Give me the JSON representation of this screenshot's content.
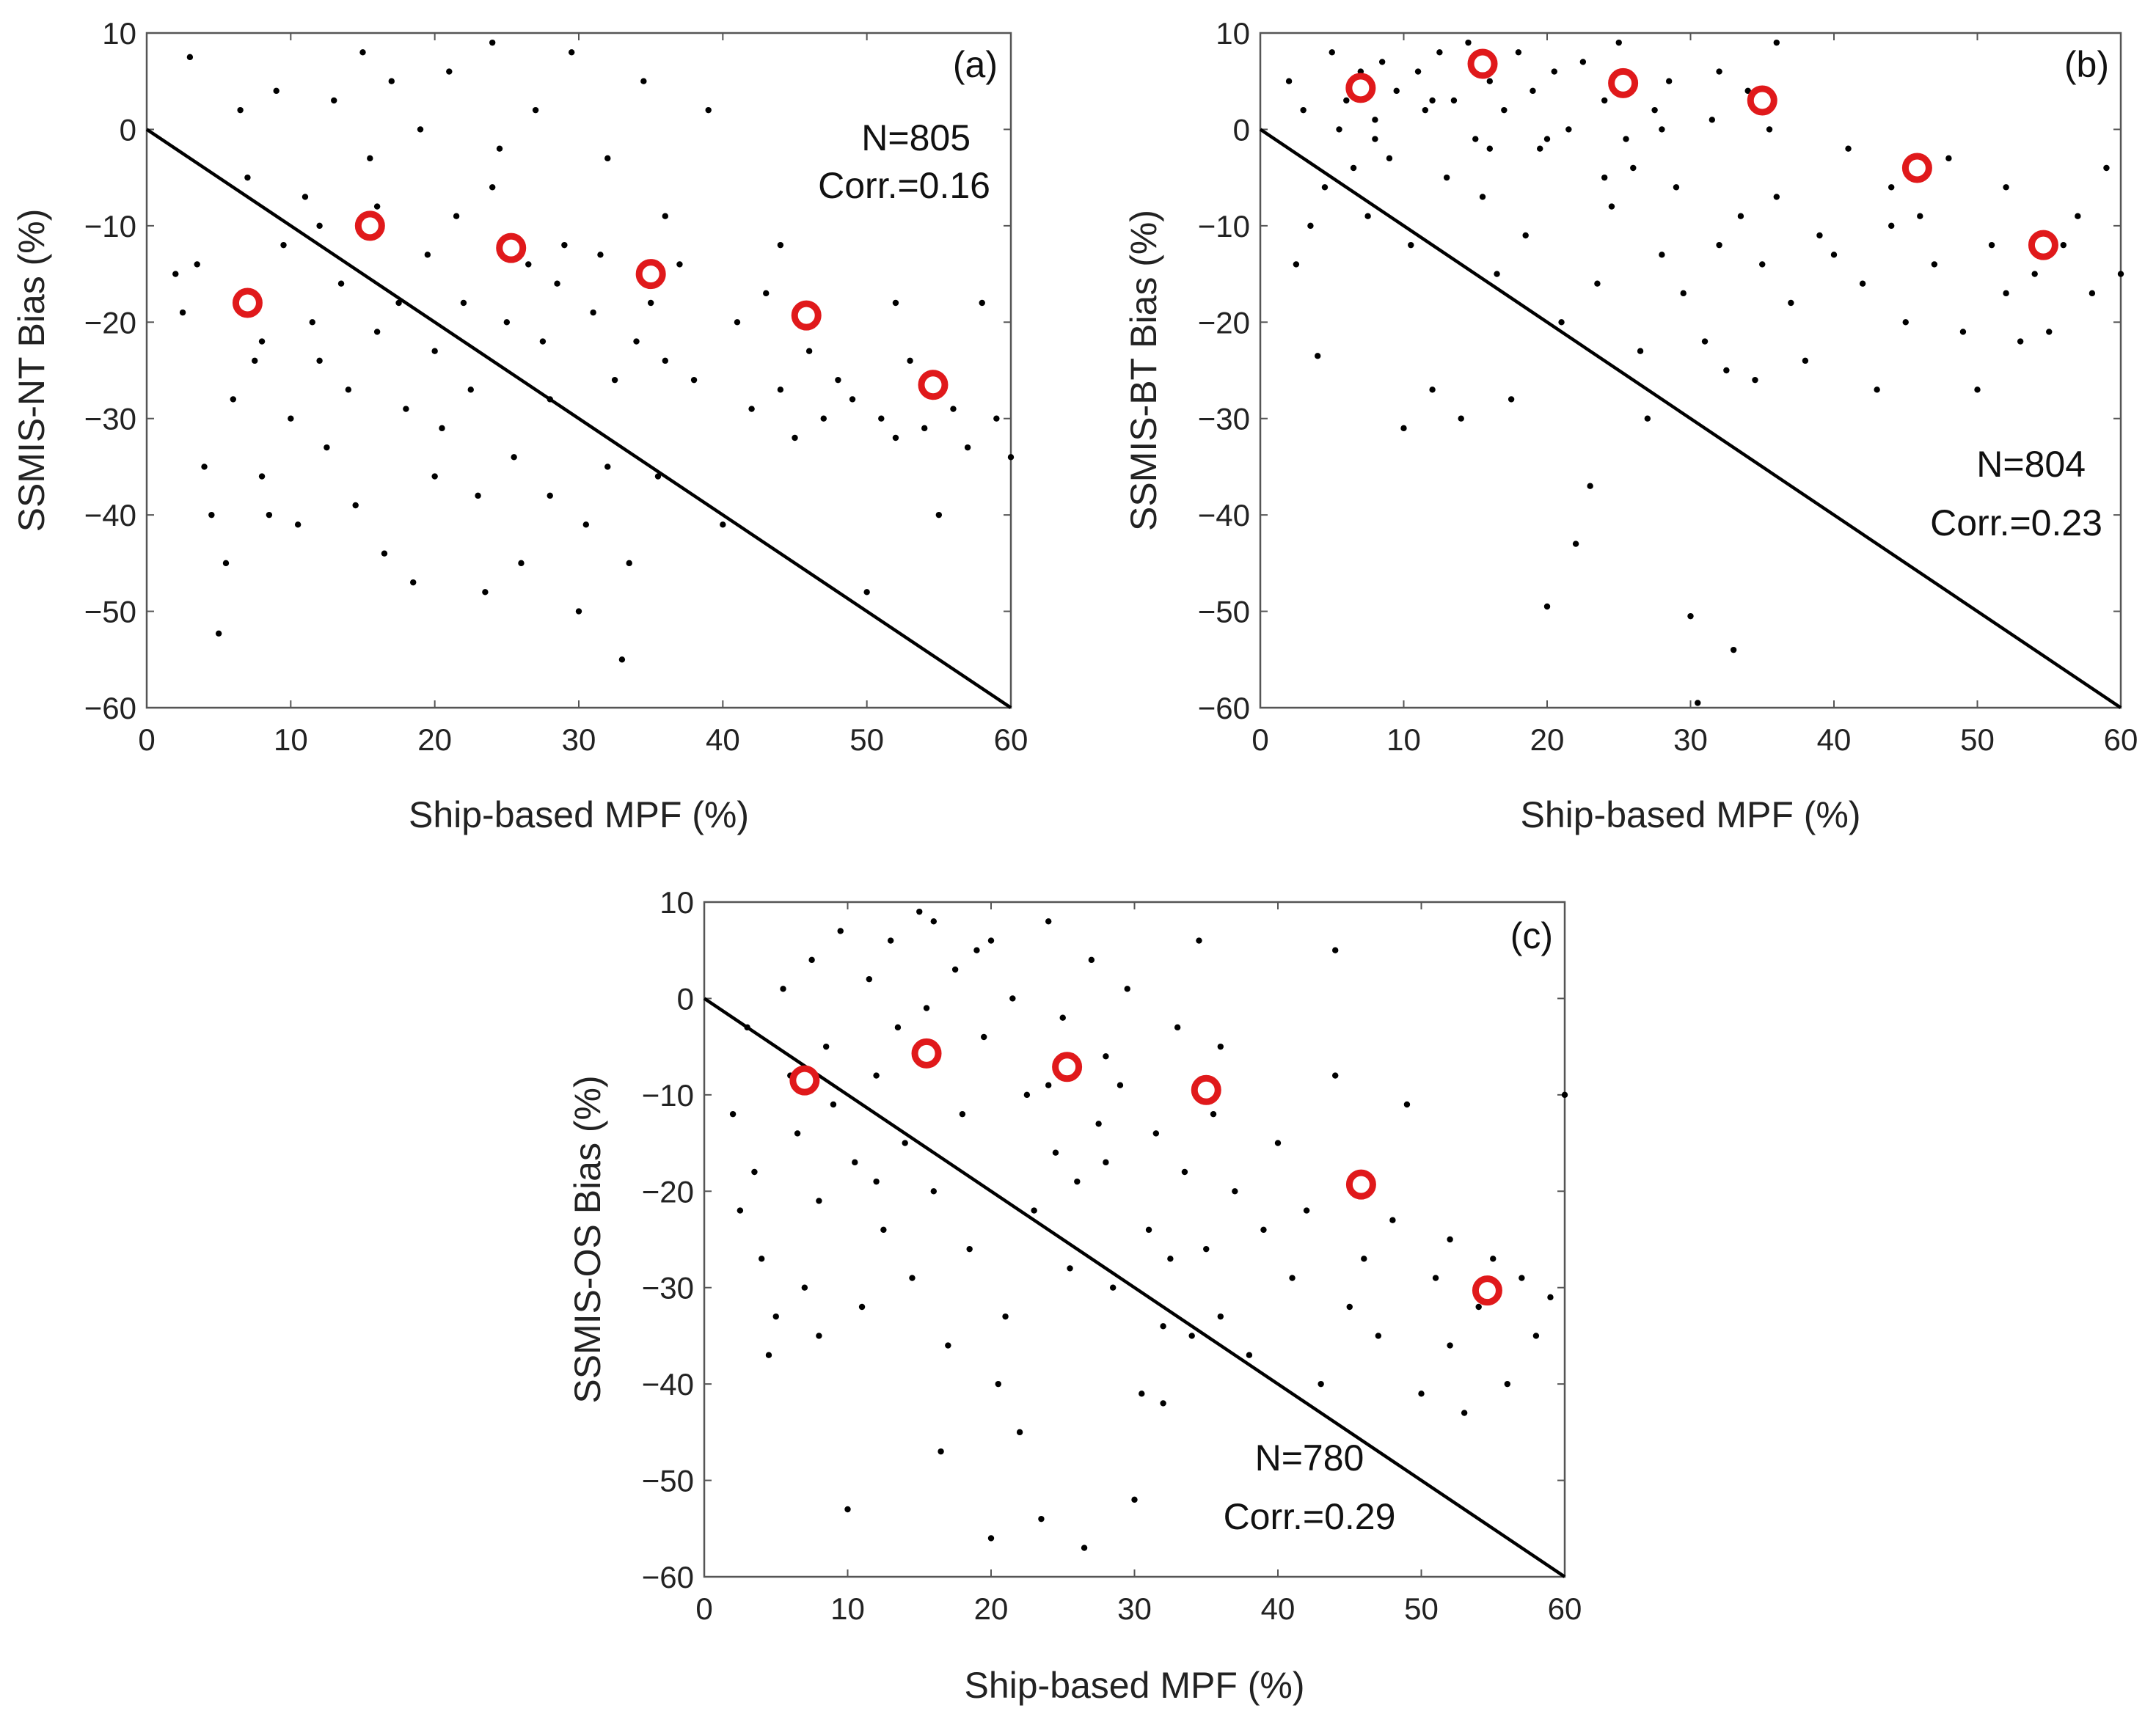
{
  "figure": {
    "panel_count": 3
  },
  "chart_data": [
    {
      "type": "scatter",
      "panel_label": "(a)",
      "xlabel": "Ship-based MPF (%)",
      "ylabel": "SSMIS-NT Bias (%)",
      "xlim": [
        0,
        60
      ],
      "ylim": [
        -60,
        10
      ],
      "xticks": [
        0,
        10,
        20,
        30,
        40,
        50,
        60
      ],
      "yticks": [
        10,
        0,
        -10,
        -20,
        -30,
        -40,
        -50,
        -60
      ],
      "annotation_n": "N=805",
      "annotation_corr": "Corr.=0.16",
      "reference_line": {
        "x": [
          0,
          60
        ],
        "y": [
          0,
          -60
        ]
      },
      "binned_means": [
        {
          "x": 7,
          "y": -18
        },
        {
          "x": 15.5,
          "y": -10
        },
        {
          "x": 25.3,
          "y": -12.3
        },
        {
          "x": 35,
          "y": -15
        },
        {
          "x": 45.8,
          "y": -19.3
        },
        {
          "x": 54.6,
          "y": -26.5
        }
      ],
      "scatter_points_approx": [
        [
          2,
          -15
        ],
        [
          2.5,
          -19
        ],
        [
          3,
          7.5
        ],
        [
          3.5,
          -14
        ],
        [
          4,
          -35
        ],
        [
          4.5,
          -40
        ],
        [
          5,
          -52.3
        ],
        [
          5.5,
          -45
        ],
        [
          6,
          -28
        ],
        [
          6.5,
          2
        ],
        [
          7,
          -5
        ],
        [
          7.5,
          -24
        ],
        [
          8,
          -36
        ],
        [
          8.5,
          -40
        ],
        [
          9,
          4
        ],
        [
          9.5,
          -12
        ],
        [
          10,
          -30
        ],
        [
          10.5,
          -41
        ],
        [
          11,
          -7
        ],
        [
          11.5,
          -20
        ],
        [
          12,
          -24
        ],
        [
          12.5,
          -33
        ],
        [
          13,
          3
        ],
        [
          13.5,
          -16
        ],
        [
          14,
          -27
        ],
        [
          14.5,
          -39
        ],
        [
          15,
          8
        ],
        [
          15.5,
          -3
        ],
        [
          16,
          -21
        ],
        [
          16.5,
          -44
        ],
        [
          17,
          5
        ],
        [
          17.5,
          -18
        ],
        [
          18,
          -29
        ],
        [
          18.5,
          -47
        ],
        [
          19,
          0
        ],
        [
          19.5,
          -13
        ],
        [
          20,
          -23
        ],
        [
          20.5,
          -31
        ],
        [
          21,
          6
        ],
        [
          21.5,
          -9
        ],
        [
          22,
          -18
        ],
        [
          22.5,
          -27
        ],
        [
          23,
          -38
        ],
        [
          23.5,
          -48
        ],
        [
          24,
          9
        ],
        [
          24.5,
          -2
        ],
        [
          25,
          -20
        ],
        [
          25.5,
          -34
        ],
        [
          26,
          -45
        ],
        [
          26.5,
          -14
        ],
        [
          27,
          2
        ],
        [
          27.5,
          -22
        ],
        [
          28,
          -28
        ],
        [
          28.5,
          -16
        ],
        [
          29,
          -12
        ],
        [
          29.5,
          8
        ],
        [
          30,
          -50
        ],
        [
          30.5,
          -41
        ],
        [
          31,
          -19
        ],
        [
          31.5,
          -13
        ],
        [
          32,
          -35
        ],
        [
          32.5,
          -26
        ],
        [
          33,
          -55
        ],
        [
          33.5,
          -45
        ],
        [
          34,
          -22
        ],
        [
          34.5,
          5
        ],
        [
          35,
          -18
        ],
        [
          35.5,
          -36
        ],
        [
          36,
          -24
        ],
        [
          37,
          -14
        ],
        [
          38,
          -26
        ],
        [
          39,
          2
        ],
        [
          40,
          -41
        ],
        [
          41,
          -20
        ],
        [
          42,
          -29
        ],
        [
          43,
          -17
        ],
        [
          44,
          -27
        ],
        [
          45,
          -32
        ],
        [
          46,
          -23
        ],
        [
          47,
          -30
        ],
        [
          48,
          -26
        ],
        [
          49,
          -28
        ],
        [
          50,
          -48
        ],
        [
          51,
          -30
        ],
        [
          52,
          -18
        ],
        [
          53,
          -24
        ],
        [
          54,
          -31
        ],
        [
          55,
          -40
        ],
        [
          56,
          -29
        ],
        [
          57,
          -33
        ],
        [
          58,
          -18
        ],
        [
          59,
          -30
        ],
        [
          60,
          -34
        ],
        [
          8,
          -22
        ],
        [
          12,
          -10
        ],
        [
          16,
          -8
        ],
        [
          20,
          -36
        ],
        [
          24,
          -6
        ],
        [
          28,
          -38
        ],
        [
          32,
          -3
        ],
        [
          36,
          -9
        ],
        [
          44,
          -12
        ],
        [
          52,
          -32
        ]
      ]
    },
    {
      "type": "scatter",
      "panel_label": "(b)",
      "xlabel": "Ship-based MPF (%)",
      "ylabel": "SSMIS-BT Bias (%)",
      "xlim": [
        0,
        60
      ],
      "ylim": [
        -60,
        10
      ],
      "xticks": [
        0,
        10,
        20,
        30,
        40,
        50,
        60
      ],
      "yticks": [
        10,
        0,
        -10,
        -20,
        -30,
        -40,
        -50,
        -60
      ],
      "annotation_n": "N=804",
      "annotation_corr": "Corr.=0.23",
      "reference_line": {
        "x": [
          0,
          60
        ],
        "y": [
          0,
          -60
        ]
      },
      "binned_means": [
        {
          "x": 7,
          "y": 4.3
        },
        {
          "x": 15.5,
          "y": 6.8
        },
        {
          "x": 25.3,
          "y": 4.8
        },
        {
          "x": 35,
          "y": 3
        },
        {
          "x": 45.8,
          "y": -4
        },
        {
          "x": 54.6,
          "y": -12
        }
      ],
      "scatter_points_approx": [
        [
          2,
          5
        ],
        [
          2.5,
          -14
        ],
        [
          3,
          2
        ],
        [
          3.5,
          -10
        ],
        [
          4,
          -23.5
        ],
        [
          4.5,
          -6
        ],
        [
          5,
          8
        ],
        [
          5.5,
          0
        ],
        [
          6,
          3
        ],
        [
          6.5,
          -4
        ],
        [
          7,
          6
        ],
        [
          7.5,
          -9
        ],
        [
          8,
          1
        ],
        [
          8.5,
          7
        ],
        [
          9,
          -3
        ],
        [
          9.5,
          4
        ],
        [
          10,
          -31
        ],
        [
          10.5,
          -12
        ],
        [
          11,
          6
        ],
        [
          11.5,
          2
        ],
        [
          12,
          -27
        ],
        [
          12.5,
          8
        ],
        [
          13,
          -5
        ],
        [
          13.5,
          3
        ],
        [
          14,
          -30
        ],
        [
          14.5,
          9
        ],
        [
          15,
          -1
        ],
        [
          15.5,
          -7
        ],
        [
          16,
          5
        ],
        [
          16.5,
          -15
        ],
        [
          17,
          2
        ],
        [
          17.5,
          -28
        ],
        [
          18,
          8
        ],
        [
          18.5,
          -11
        ],
        [
          19,
          4
        ],
        [
          19.5,
          -2
        ],
        [
          20,
          -49.5
        ],
        [
          20.5,
          6
        ],
        [
          21,
          -20
        ],
        [
          21.5,
          0
        ],
        [
          22,
          -43
        ],
        [
          22.5,
          7
        ],
        [
          23,
          -37
        ],
        [
          23.5,
          -16
        ],
        [
          24,
          3
        ],
        [
          24.5,
          -8
        ],
        [
          25,
          9
        ],
        [
          25.5,
          -1
        ],
        [
          26,
          -4
        ],
        [
          26.5,
          -23
        ],
        [
          27,
          -30
        ],
        [
          27.5,
          2
        ],
        [
          28,
          -13
        ],
        [
          28.5,
          5
        ],
        [
          29,
          -6
        ],
        [
          29.5,
          -17
        ],
        [
          30,
          -50.5
        ],
        [
          30.5,
          -59.5
        ],
        [
          31,
          -22
        ],
        [
          31.5,
          1
        ],
        [
          32,
          -12
        ],
        [
          32.5,
          -25
        ],
        [
          33,
          -54
        ],
        [
          33.5,
          -9
        ],
        [
          34,
          4
        ],
        [
          34.5,
          -26
        ],
        [
          35,
          -14
        ],
        [
          35.5,
          0
        ],
        [
          36,
          -7
        ],
        [
          37,
          -18
        ],
        [
          38,
          -24
        ],
        [
          39,
          -11
        ],
        [
          40,
          -13
        ],
        [
          41,
          -2
        ],
        [
          42,
          -16
        ],
        [
          43,
          -27
        ],
        [
          44,
          -6
        ],
        [
          45,
          -20
        ],
        [
          46,
          -9
        ],
        [
          47,
          -14
        ],
        [
          48,
          -3
        ],
        [
          49,
          -21
        ],
        [
          50,
          -27
        ],
        [
          51,
          -12
        ],
        [
          52,
          -17
        ],
        [
          53,
          -22
        ],
        [
          54,
          -15
        ],
        [
          55,
          -21
        ],
        [
          56,
          -12
        ],
        [
          57,
          -9
        ],
        [
          58,
          -17
        ],
        [
          59,
          -4
        ],
        [
          60,
          -15
        ],
        [
          8,
          -1
        ],
        [
          12,
          3
        ],
        [
          16,
          -2
        ],
        [
          20,
          -1
        ],
        [
          24,
          -5
        ],
        [
          28,
          0
        ],
        [
          32,
          6
        ],
        [
          36,
          9
        ],
        [
          44,
          -10
        ],
        [
          52,
          -6
        ]
      ]
    },
    {
      "type": "scatter",
      "panel_label": "(c)",
      "xlabel": "Ship-based MPF (%)",
      "ylabel": "SSMIS-OS Bias (%)",
      "xlim": [
        0,
        60
      ],
      "ylim": [
        -60,
        10
      ],
      "xticks": [
        0,
        10,
        20,
        30,
        40,
        50,
        60
      ],
      "yticks": [
        10,
        0,
        -10,
        -20,
        -30,
        -40,
        -50,
        -60
      ],
      "annotation_n": "N=780",
      "annotation_corr": "Corr.=0.29",
      "reference_line": {
        "x": [
          0,
          60
        ],
        "y": [
          0,
          -60
        ]
      },
      "binned_means": [
        {
          "x": 7,
          "y": -8.5
        },
        {
          "x": 15.5,
          "y": -5.7
        },
        {
          "x": 25.3,
          "y": -7.1
        },
        {
          "x": 35,
          "y": -9.5
        },
        {
          "x": 45.8,
          "y": -19.3
        },
        {
          "x": 54.6,
          "y": -30.3
        }
      ],
      "scatter_points_approx": [
        [
          2,
          -12
        ],
        [
          2.5,
          -22
        ],
        [
          3,
          -3
        ],
        [
          3.5,
          -18
        ],
        [
          4,
          -27
        ],
        [
          4.5,
          -37
        ],
        [
          5,
          -33
        ],
        [
          5.5,
          1
        ],
        [
          6,
          -8
        ],
        [
          6.5,
          -14
        ],
        [
          7,
          -30
        ],
        [
          7.5,
          4
        ],
        [
          8,
          -35
        ],
        [
          8.5,
          -5
        ],
        [
          9,
          -11
        ],
        [
          9.5,
          7
        ],
        [
          10,
          -53
        ],
        [
          10.5,
          -17
        ],
        [
          11,
          -32
        ],
        [
          11.5,
          2
        ],
        [
          12,
          -8
        ],
        [
          12.5,
          -24
        ],
        [
          13,
          6
        ],
        [
          13.5,
          -3
        ],
        [
          14,
          -15
        ],
        [
          14.5,
          -29
        ],
        [
          15,
          9
        ],
        [
          15.5,
          -1
        ],
        [
          16,
          -20
        ],
        [
          16.5,
          -47
        ],
        [
          17,
          -36
        ],
        [
          17.5,
          3
        ],
        [
          18,
          -12
        ],
        [
          18.5,
          -26
        ],
        [
          19,
          5
        ],
        [
          19.5,
          -4
        ],
        [
          20,
          -56
        ],
        [
          20.5,
          -40
        ],
        [
          21,
          -33
        ],
        [
          21.5,
          0
        ],
        [
          22,
          -45
        ],
        [
          22.5,
          -10
        ],
        [
          23,
          -22
        ],
        [
          23.5,
          -54
        ],
        [
          24,
          8
        ],
        [
          24.5,
          -16
        ],
        [
          25,
          -2
        ],
        [
          25.5,
          -28
        ],
        [
          26,
          -19
        ],
        [
          26.5,
          -57
        ],
        [
          27,
          4
        ],
        [
          27.5,
          -13
        ],
        [
          28,
          -6
        ],
        [
          28.5,
          -30
        ],
        [
          29,
          -9
        ],
        [
          29.5,
          1
        ],
        [
          30,
          -52
        ],
        [
          30.5,
          -41
        ],
        [
          31,
          -24
        ],
        [
          31.5,
          -14
        ],
        [
          32,
          -42
        ],
        [
          32.5,
          -27
        ],
        [
          33,
          -3
        ],
        [
          33.5,
          -18
        ],
        [
          34,
          -35
        ],
        [
          34.5,
          6
        ],
        [
          35,
          -26
        ],
        [
          35.5,
          -12
        ],
        [
          36,
          -33
        ],
        [
          37,
          -20
        ],
        [
          38,
          -37
        ],
        [
          39,
          -24
        ],
        [
          40,
          -15
        ],
        [
          41,
          -29
        ],
        [
          42,
          -22
        ],
        [
          43,
          -40
        ],
        [
          44,
          -8
        ],
        [
          45,
          -32
        ],
        [
          46,
          -27
        ],
        [
          47,
          -35
        ],
        [
          48,
          -23
        ],
        [
          49,
          -11
        ],
        [
          50,
          -41
        ],
        [
          51,
          -29
        ],
        [
          52,
          -36
        ],
        [
          53,
          -43
        ],
        [
          54,
          -32
        ],
        [
          55,
          -27
        ],
        [
          56,
          -40
        ],
        [
          57,
          -29
        ],
        [
          58,
          -35
        ],
        [
          59,
          -31
        ],
        [
          60,
          -10
        ],
        [
          8,
          -21
        ],
        [
          12,
          -19
        ],
        [
          16,
          8
        ],
        [
          20,
          6
        ],
        [
          24,
          -9
        ],
        [
          28,
          -17
        ],
        [
          32,
          -34
        ],
        [
          36,
          -5
        ],
        [
          44,
          5
        ],
        [
          52,
          -25
        ]
      ]
    }
  ],
  "colors": {
    "points": "#000000",
    "means": "#e0191b",
    "line": "#000000",
    "axes": "#555555",
    "text": "#222222"
  }
}
